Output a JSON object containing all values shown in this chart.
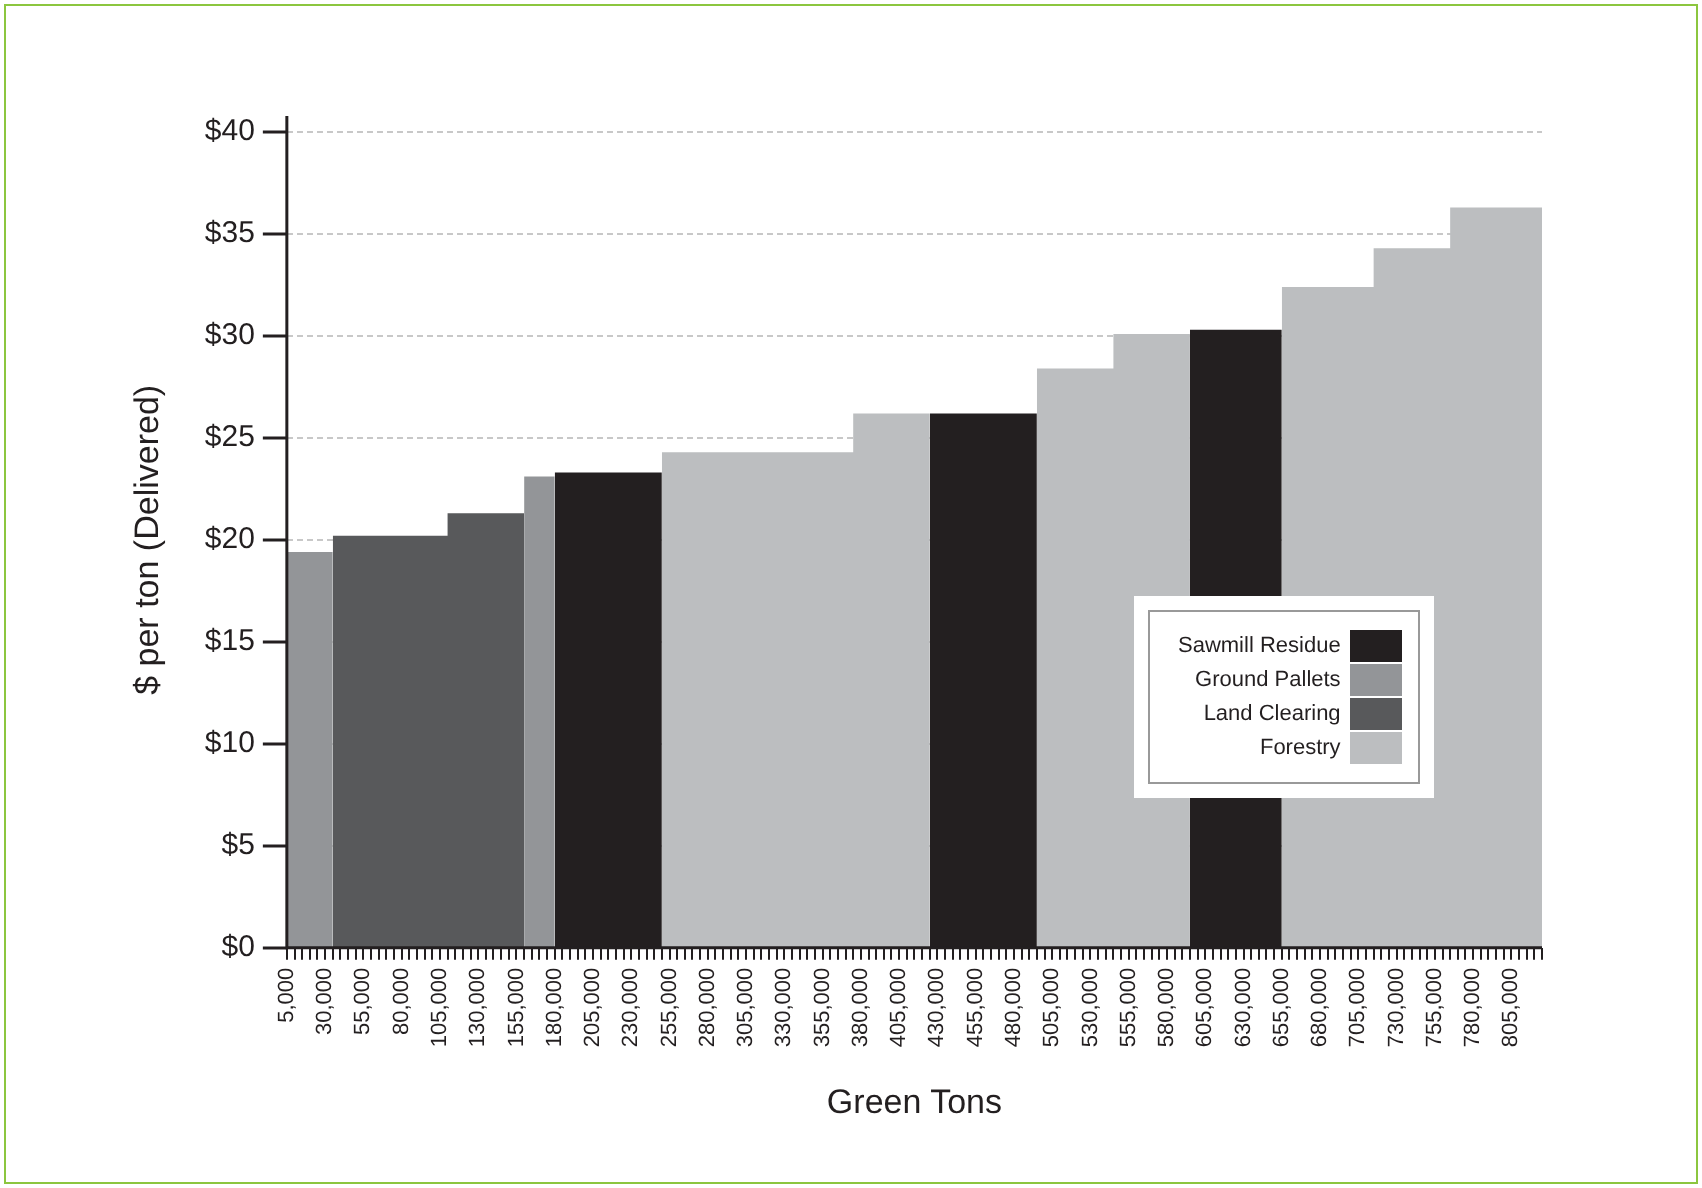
{
  "chart_data": {
    "type": "area",
    "xlabel": "Green Tons",
    "ylabel": "$ per ton (Delivered)",
    "series": [
      {
        "name": "Sawmill Residue",
        "color": "#231f20",
        "x": [
          180000,
          250000,
          null,
          425000,
          495000,
          null,
          595000,
          655000
        ],
        "values": [
          23.3,
          23.3,
          null,
          26.2,
          26.2,
          null,
          30.3,
          30.3
        ]
      },
      {
        "name": "Ground Pallets",
        "color": "#939598",
        "x": [
          5000,
          35000,
          null,
          160000,
          180000
        ],
        "values": [
          19.4,
          19.4,
          null,
          23.1,
          23.1
        ]
      },
      {
        "name": "Land Clearing",
        "color": "#58595b",
        "x": [
          35000,
          110000,
          110000,
          160000
        ],
        "values": [
          20.2,
          20.2,
          21.3,
          21.3
        ]
      },
      {
        "name": "Forestry",
        "color": "#bcbec0",
        "x": [
          250000,
          375000,
          375000,
          425000,
          null,
          495000,
          545000,
          545000,
          595000,
          null,
          655000,
          715000,
          715000,
          765000,
          765000,
          825000
        ],
        "values": [
          24.3,
          24.3,
          26.2,
          26.2,
          null,
          28.4,
          28.4,
          30.1,
          30.1,
          null,
          32.4,
          32.4,
          34.3,
          34.3,
          36.3,
          36.3
        ]
      }
    ],
    "xlim": [
      5000,
      825000
    ],
    "xticks": [
      {
        "value": 5000,
        "label": "5,000"
      },
      {
        "value": 10000,
        "label": null
      },
      {
        "value": 15000,
        "label": null
      },
      {
        "value": 20000,
        "label": null
      },
      {
        "value": 25000,
        "label": null
      },
      {
        "value": 30000,
        "label": "30,000"
      },
      {
        "value": 35000,
        "label": null
      },
      {
        "value": 40000,
        "label": null
      },
      {
        "value": 45000,
        "label": null
      },
      {
        "value": 50000,
        "label": null
      },
      {
        "value": 55000,
        "label": "55,000"
      },
      {
        "value": 60000,
        "label": null
      },
      {
        "value": 65000,
        "label": null
      },
      {
        "value": 70000,
        "label": null
      },
      {
        "value": 75000,
        "label": null
      },
      {
        "value": 80000,
        "label": "80,000"
      },
      {
        "value": 85000,
        "label": null
      },
      {
        "value": 90000,
        "label": null
      },
      {
        "value": 95000,
        "label": null
      },
      {
        "value": 100000,
        "label": null
      },
      {
        "value": 105000,
        "label": "105,000"
      },
      {
        "value": 110000,
        "label": null
      },
      {
        "value": 115000,
        "label": null
      },
      {
        "value": 120000,
        "label": null
      },
      {
        "value": 125000,
        "label": null
      },
      {
        "value": 130000,
        "label": "130,000"
      },
      {
        "value": 135000,
        "label": null
      },
      {
        "value": 140000,
        "label": null
      },
      {
        "value": 145000,
        "label": null
      },
      {
        "value": 150000,
        "label": null
      },
      {
        "value": 155000,
        "label": "155,000"
      },
      {
        "value": 160000,
        "label": null
      },
      {
        "value": 165000,
        "label": null
      },
      {
        "value": 170000,
        "label": null
      },
      {
        "value": 175000,
        "label": null
      },
      {
        "value": 180000,
        "label": "180,000"
      },
      {
        "value": 185000,
        "label": null
      },
      {
        "value": 190000,
        "label": null
      },
      {
        "value": 195000,
        "label": null
      },
      {
        "value": 200000,
        "label": null
      },
      {
        "value": 205000,
        "label": "205,000"
      },
      {
        "value": 210000,
        "label": null
      },
      {
        "value": 215000,
        "label": null
      },
      {
        "value": 220000,
        "label": null
      },
      {
        "value": 225000,
        "label": null
      },
      {
        "value": 230000,
        "label": "230,000"
      },
      {
        "value": 235000,
        "label": null
      },
      {
        "value": 240000,
        "label": null
      },
      {
        "value": 245000,
        "label": null
      },
      {
        "value": 250000,
        "label": null
      },
      {
        "value": 255000,
        "label": "255,000"
      },
      {
        "value": 260000,
        "label": null
      },
      {
        "value": 265000,
        "label": null
      },
      {
        "value": 270000,
        "label": null
      },
      {
        "value": 275000,
        "label": null
      },
      {
        "value": 280000,
        "label": "280,000"
      },
      {
        "value": 285000,
        "label": null
      },
      {
        "value": 290000,
        "label": null
      },
      {
        "value": 295000,
        "label": null
      },
      {
        "value": 300000,
        "label": null
      },
      {
        "value": 305000,
        "label": "305,000"
      },
      {
        "value": 310000,
        "label": null
      },
      {
        "value": 315000,
        "label": null
      },
      {
        "value": 320000,
        "label": null
      },
      {
        "value": 325000,
        "label": null
      },
      {
        "value": 330000,
        "label": "330,000"
      },
      {
        "value": 335000,
        "label": null
      },
      {
        "value": 340000,
        "label": null
      },
      {
        "value": 345000,
        "label": null
      },
      {
        "value": 350000,
        "label": null
      },
      {
        "value": 355000,
        "label": "355,000"
      },
      {
        "value": 360000,
        "label": null
      },
      {
        "value": 365000,
        "label": null
      },
      {
        "value": 370000,
        "label": null
      },
      {
        "value": 375000,
        "label": null
      },
      {
        "value": 380000,
        "label": "380,000"
      },
      {
        "value": 385000,
        "label": null
      },
      {
        "value": 390000,
        "label": null
      },
      {
        "value": 395000,
        "label": null
      },
      {
        "value": 400000,
        "label": null
      },
      {
        "value": 405000,
        "label": "405,000"
      },
      {
        "value": 410000,
        "label": null
      },
      {
        "value": 415000,
        "label": null
      },
      {
        "value": 420000,
        "label": null
      },
      {
        "value": 425000,
        "label": null
      },
      {
        "value": 430000,
        "label": "430,000"
      },
      {
        "value": 435000,
        "label": null
      },
      {
        "value": 440000,
        "label": null
      },
      {
        "value": 445000,
        "label": null
      },
      {
        "value": 450000,
        "label": null
      },
      {
        "value": 455000,
        "label": "455,000"
      },
      {
        "value": 460000,
        "label": null
      },
      {
        "value": 465000,
        "label": null
      },
      {
        "value": 470000,
        "label": null
      },
      {
        "value": 475000,
        "label": null
      },
      {
        "value": 480000,
        "label": "480,000"
      },
      {
        "value": 485000,
        "label": null
      },
      {
        "value": 490000,
        "label": null
      },
      {
        "value": 495000,
        "label": null
      },
      {
        "value": 500000,
        "label": null
      },
      {
        "value": 505000,
        "label": "505,000"
      },
      {
        "value": 510000,
        "label": null
      },
      {
        "value": 515000,
        "label": null
      },
      {
        "value": 520000,
        "label": null
      },
      {
        "value": 525000,
        "label": null
      },
      {
        "value": 530000,
        "label": "530,000"
      },
      {
        "value": 535000,
        "label": null
      },
      {
        "value": 540000,
        "label": null
      },
      {
        "value": 545000,
        "label": null
      },
      {
        "value": 550000,
        "label": null
      },
      {
        "value": 555000,
        "label": "555,000"
      },
      {
        "value": 560000,
        "label": null
      },
      {
        "value": 565000,
        "label": null
      },
      {
        "value": 570000,
        "label": null
      },
      {
        "value": 575000,
        "label": null
      },
      {
        "value": 580000,
        "label": "580,000"
      },
      {
        "value": 585000,
        "label": null
      },
      {
        "value": 590000,
        "label": null
      },
      {
        "value": 595000,
        "label": null
      },
      {
        "value": 600000,
        "label": null
      },
      {
        "value": 605000,
        "label": "605,000"
      },
      {
        "value": 610000,
        "label": null
      },
      {
        "value": 615000,
        "label": null
      },
      {
        "value": 620000,
        "label": null
      },
      {
        "value": 625000,
        "label": null
      },
      {
        "value": 630000,
        "label": "630,000"
      },
      {
        "value": 635000,
        "label": null
      },
      {
        "value": 640000,
        "label": null
      },
      {
        "value": 645000,
        "label": null
      },
      {
        "value": 650000,
        "label": null
      },
      {
        "value": 655000,
        "label": "655,000"
      },
      {
        "value": 660000,
        "label": null
      },
      {
        "value": 665000,
        "label": null
      },
      {
        "value": 670000,
        "label": null
      },
      {
        "value": 675000,
        "label": null
      },
      {
        "value": 680000,
        "label": "680,000"
      },
      {
        "value": 685000,
        "label": null
      },
      {
        "value": 690000,
        "label": null
      },
      {
        "value": 695000,
        "label": null
      },
      {
        "value": 700000,
        "label": null
      },
      {
        "value": 705000,
        "label": "705,000"
      },
      {
        "value": 710000,
        "label": null
      },
      {
        "value": 715000,
        "label": null
      },
      {
        "value": 720000,
        "label": null
      },
      {
        "value": 725000,
        "label": null
      },
      {
        "value": 730000,
        "label": "730,000"
      },
      {
        "value": 735000,
        "label": null
      },
      {
        "value": 740000,
        "label": null
      },
      {
        "value": 745000,
        "label": null
      },
      {
        "value": 750000,
        "label": null
      },
      {
        "value": 755000,
        "label": "755,000"
      },
      {
        "value": 760000,
        "label": null
      },
      {
        "value": 765000,
        "label": null
      },
      {
        "value": 770000,
        "label": null
      },
      {
        "value": 775000,
        "label": null
      },
      {
        "value": 780000,
        "label": "780,000"
      },
      {
        "value": 785000,
        "label": null
      },
      {
        "value": 790000,
        "label": null
      },
      {
        "value": 795000,
        "label": null
      },
      {
        "value": 800000,
        "label": null
      },
      {
        "value": 805000,
        "label": "805,000"
      },
      {
        "value": 810000,
        "label": null
      },
      {
        "value": 815000,
        "label": null
      },
      {
        "value": 820000,
        "label": null
      },
      {
        "value": 825000,
        "label": null
      }
    ],
    "ylim": [
      0,
      40
    ],
    "yticks": [
      {
        "value": 0,
        "label": "$0"
      },
      {
        "value": 5,
        "label": "$5"
      },
      {
        "value": 10,
        "label": "$10"
      },
      {
        "value": 15,
        "label": "$15"
      },
      {
        "value": 20,
        "label": "$20"
      },
      {
        "value": 25,
        "label": "$25"
      },
      {
        "value": 30,
        "label": "$30"
      },
      {
        "value": 35,
        "label": "$35"
      },
      {
        "value": 40,
        "label": "$40"
      }
    ],
    "grid": "y",
    "legend": "right"
  }
}
